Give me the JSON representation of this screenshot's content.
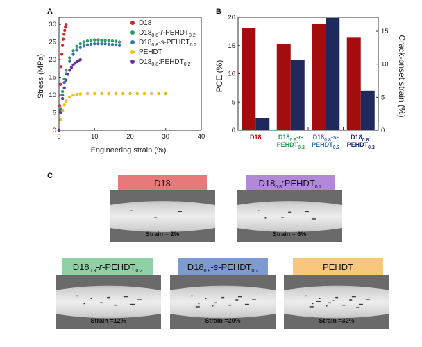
{
  "panel_labels": {
    "a": "A",
    "b": "B",
    "c": "C"
  },
  "chart_data": [
    {
      "type": "scatter",
      "xlabel": "Engineering strain (%)",
      "ylabel": "Stress (MPa)",
      "xlim": [
        0,
        40
      ],
      "ylim": [
        0,
        32
      ],
      "x_ticks": [
        "0",
        "10",
        "20",
        "30",
        "40"
      ],
      "y_ticks": [
        "0",
        "5",
        "10",
        "15",
        "20",
        "25",
        "30"
      ],
      "legend_position": "top-right",
      "legend": [
        {
          "base": "D18",
          "sub": "",
          "mid": "",
          "sub2": "",
          "italic": "",
          "tail": "",
          "color": "#d62728"
        },
        {
          "base": "D18",
          "sub": "0.8",
          "mid": "-",
          "italic": "r",
          "tail": "-PEHDT",
          "sub2": "0.2",
          "color": "#2ca05a"
        },
        {
          "base": "D18",
          "sub": "0.8",
          "mid": "-",
          "italic": "s",
          "tail": "-PEHDT",
          "sub2": "0.2",
          "color": "#2f74b5"
        },
        {
          "base": "PEHDT",
          "sub": "",
          "mid": "",
          "sub2": "",
          "italic": "",
          "tail": "",
          "color": "#f2c20f"
        },
        {
          "base": "D18",
          "sub": "0.8",
          "mid": ":",
          "italic": "",
          "tail": "PEHDT",
          "sub2": "0.2",
          "color": "#6a2fb0"
        }
      ],
      "series": [
        {
          "name": "D18",
          "color": "#d62728",
          "x": [
            0,
            0.2,
            0.4,
            0.6,
            0.8,
            1.0,
            1.2,
            1.4,
            1.6,
            1.8,
            2.0
          ],
          "y": [
            0,
            7,
            13,
            18,
            21.5,
            24,
            25.8,
            27.2,
            28.3,
            29.2,
            30
          ]
        },
        {
          "name": "D18 0.8 -r-PEHDT 0.2",
          "color": "#2ca05a",
          "x": [
            0,
            0.5,
            1,
            1.5,
            2,
            3,
            4,
            5,
            6,
            7,
            8,
            9,
            10,
            11,
            12,
            13,
            14,
            15,
            16,
            17
          ],
          "y": [
            0,
            6,
            11,
            14.5,
            17,
            20.5,
            22.5,
            23.8,
            24.5,
            25,
            25.3,
            25.5,
            25.6,
            25.6,
            25.5,
            25.5,
            25.4,
            25.3,
            25.2,
            25
          ]
        },
        {
          "name": "D18 0.8 -s-PEHDT 0.2",
          "color": "#2f74b5",
          "x": [
            0,
            0.5,
            1,
            1.5,
            2,
            3,
            4,
            5,
            6,
            7,
            8,
            9,
            10,
            11,
            12,
            13,
            14,
            15,
            16,
            17
          ],
          "y": [
            0,
            5.5,
            10,
            13.5,
            16,
            19.5,
            21.5,
            22.7,
            23.4,
            23.9,
            24.2,
            24.4,
            24.5,
            24.5,
            24.5,
            24.5,
            24.4,
            24.3,
            24.2,
            24
          ]
        },
        {
          "name": "PEHDT",
          "color": "#f2c20f",
          "x": [
            0,
            0.5,
            1,
            1.5,
            2,
            3,
            4,
            5,
            6,
            8,
            10,
            12,
            14,
            16,
            18,
            20,
            22,
            24,
            26,
            28,
            30
          ],
          "y": [
            0,
            3,
            5.5,
            7.2,
            8.3,
            9.4,
            10,
            10.2,
            10.3,
            10.4,
            10.4,
            10.4,
            10.4,
            10.4,
            10.4,
            10.4,
            10.4,
            10.4,
            10.4,
            10.4,
            10.4
          ]
        },
        {
          "name": "D18 0.8 :PEHDT 0.2",
          "color": "#6a2fb0",
          "x": [
            0,
            0.5,
            1,
            1.5,
            2,
            2.5,
            3,
            3.5,
            4,
            4.5,
            5,
            5.5,
            6
          ],
          "y": [
            0,
            5,
            9,
            12,
            14.2,
            15.8,
            17,
            17.8,
            18.5,
            19,
            19.4,
            19.7,
            20
          ]
        }
      ]
    },
    {
      "type": "bar",
      "categories": [
        {
          "base": "D18",
          "sub": "",
          "line2": "",
          "sub2": "",
          "mid": "",
          "italic": "",
          "color": "#c00000"
        },
        {
          "base": "D18",
          "sub": "0.8",
          "mid": "-",
          "italic": "r",
          "line2": "PEHDT",
          "sub2": "0.2",
          "color": "#2ca05a"
        },
        {
          "base": "D18",
          "sub": "0.8",
          "mid": "-",
          "italic": "s",
          "line2": "PEHDT",
          "sub2": "0.2",
          "color": "#2f74b5"
        },
        {
          "base": "D18",
          "sub": "0.8",
          "mid": ":",
          "italic": "",
          "line2": "PEHDT",
          "sub2": "0.2",
          "color": "#1f2f7a"
        }
      ],
      "series": [
        {
          "name": "PCE (%)",
          "color": "#a30d0d",
          "values": [
            18.1,
            15.3,
            18.9,
            16.4
          ]
        },
        {
          "name": "Crack-onset strain (%)",
          "color": "#1f2a5c",
          "values": [
            1.8,
            10.6,
            17.0,
            6.0
          ]
        }
      ],
      "ylabel_left": "PCE (%)",
      "ylabel_right": "Crack-onset strain (%)",
      "ylim_left": [
        0,
        20
      ],
      "ylim_right": [
        0,
        17.1
      ],
      "left_ticks": [
        "0",
        "5",
        "10",
        "15",
        "20"
      ],
      "right_ticks": [
        "0",
        "5",
        "10",
        "15"
      ],
      "left_color": "#c00000",
      "right_color": "#1f2a5c"
    }
  ],
  "films": [
    {
      "base": "D18",
      "sub": "",
      "mid": "",
      "italic": "",
      "tail": "",
      "sub2": "",
      "header_color": "#e8797a",
      "strain": "Strain = 2%"
    },
    {
      "base": "D18",
      "sub": "0.8",
      "mid": ":",
      "italic": "",
      "tail": "PEHDT",
      "sub2": "0.2",
      "header_color": "#b189d6",
      "strain": "Strain = 6%"
    },
    {
      "base": "D18",
      "sub": "0.8",
      "mid": "-",
      "italic": "r",
      "tail": "-PEHDT",
      "sub2": "0.2",
      "header_color": "#8fd0a6",
      "strain": "Strain =12%"
    },
    {
      "base": "D18",
      "sub": "0.8",
      "mid": "-",
      "italic": "s",
      "tail": "-PEHDT",
      "sub2": "0.2",
      "header_color": "#7d9bd0",
      "strain": "Strain =20%"
    },
    {
      "base": "PEHDT",
      "sub": "",
      "mid": "",
      "italic": "",
      "tail": "",
      "sub2": "",
      "header_color": "#f8c77c",
      "strain": "Strain =32%"
    }
  ]
}
